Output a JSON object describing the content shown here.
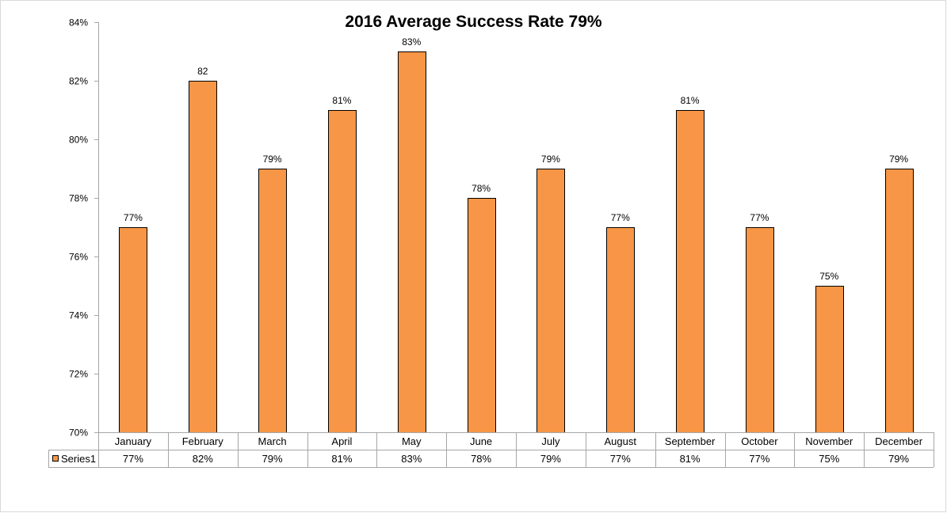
{
  "chart_data": {
    "type": "bar",
    "title": "2016 Average Success Rate 79%",
    "categories": [
      "January",
      "February",
      "March",
      "April",
      "May",
      "June",
      "July",
      "August",
      "September",
      "October",
      "November",
      "December"
    ],
    "series": [
      {
        "name": "Series1",
        "values": [
          77,
          82,
          79,
          81,
          83,
          78,
          79,
          77,
          81,
          77,
          75,
          79
        ],
        "color": "#F79646"
      }
    ],
    "data_labels": [
      "77%",
      "82",
      "79%",
      "81%",
      "83%",
      "78%",
      "79%",
      "77%",
      "81%",
      "77%",
      "75%",
      "79%"
    ],
    "table_values": [
      "77%",
      "82%",
      "79%",
      "81%",
      "83%",
      "78%",
      "79%",
      "77%",
      "81%",
      "77%",
      "75%",
      "79%"
    ],
    "ylim": [
      70,
      84
    ],
    "y_ticks": [
      {
        "value": 70,
        "label": "70%"
      },
      {
        "value": 72,
        "label": "72%"
      },
      {
        "value": 74,
        "label": "74%"
      },
      {
        "value": 76,
        "label": "76%"
      },
      {
        "value": 78,
        "label": "78%"
      },
      {
        "value": 80,
        "label": "80%"
      },
      {
        "value": 82,
        "label": "82%"
      },
      {
        "value": 84,
        "label": "84%"
      }
    ],
    "grid": false,
    "data_table": true,
    "legend": "data-table-left",
    "bar_outline_color": "#000000",
    "axis_color": "#A6A6A6",
    "text_color": "#000000"
  }
}
